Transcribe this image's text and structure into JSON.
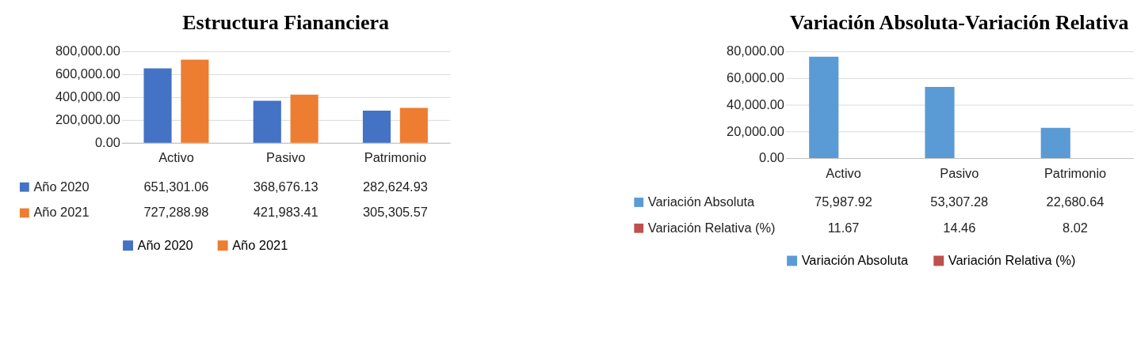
{
  "chart_data": [
    {
      "type": "bar",
      "title": "Estructura Fiananciera",
      "categories": [
        "Activo",
        "Pasivo",
        "Patrimonio"
      ],
      "series": [
        {
          "name": "Año 2020",
          "color": "#4472c4",
          "values": [
            651301.06,
            368676.13,
            282624.93
          ],
          "value_labels": [
            "651,301.06",
            "368,676.13",
            "282,624.93"
          ]
        },
        {
          "name": "Año 2021",
          "color": "#ed7d31",
          "values": [
            727288.98,
            421983.41,
            305305.57
          ],
          "value_labels": [
            "727,288.98",
            "421,983.41",
            "305,305.57"
          ]
        }
      ],
      "ylim": [
        0,
        800000
      ],
      "yticks": [
        {
          "value": 0,
          "label": "0.00"
        },
        {
          "value": 200000,
          "label": "200,000.00"
        },
        {
          "value": 400000,
          "label": "400,000.00"
        },
        {
          "value": 600000,
          "label": "600,000.00"
        },
        {
          "value": 800000,
          "label": "800,000.00"
        }
      ],
      "grid": "y",
      "legend": "bottom"
    },
    {
      "type": "bar",
      "title": "Variación Absoluta-Variación Relativa",
      "categories": [
        "Activo",
        "Pasivo",
        "Patrimonio"
      ],
      "series": [
        {
          "name": "Variación Absoluta",
          "color": "#5b9bd5",
          "values": [
            75987.92,
            53307.28,
            22680.64
          ],
          "value_labels": [
            "75,987.92",
            "53,307.28",
            "22,680.64"
          ]
        },
        {
          "name": "Variación Relativa (%)",
          "color": "#c0504d",
          "values": [
            11.67,
            14.46,
            8.02
          ],
          "value_labels": [
            "11.67",
            "14.46",
            "8.02"
          ]
        }
      ],
      "ylim": [
        0,
        80000
      ],
      "yticks": [
        {
          "value": 0,
          "label": "0.00"
        },
        {
          "value": 20000,
          "label": "20,000.00"
        },
        {
          "value": 40000,
          "label": "40,000.00"
        },
        {
          "value": 60000,
          "label": "60,000.00"
        },
        {
          "value": 80000,
          "label": "80,000.00"
        }
      ],
      "grid": "y",
      "legend": "bottom"
    }
  ]
}
